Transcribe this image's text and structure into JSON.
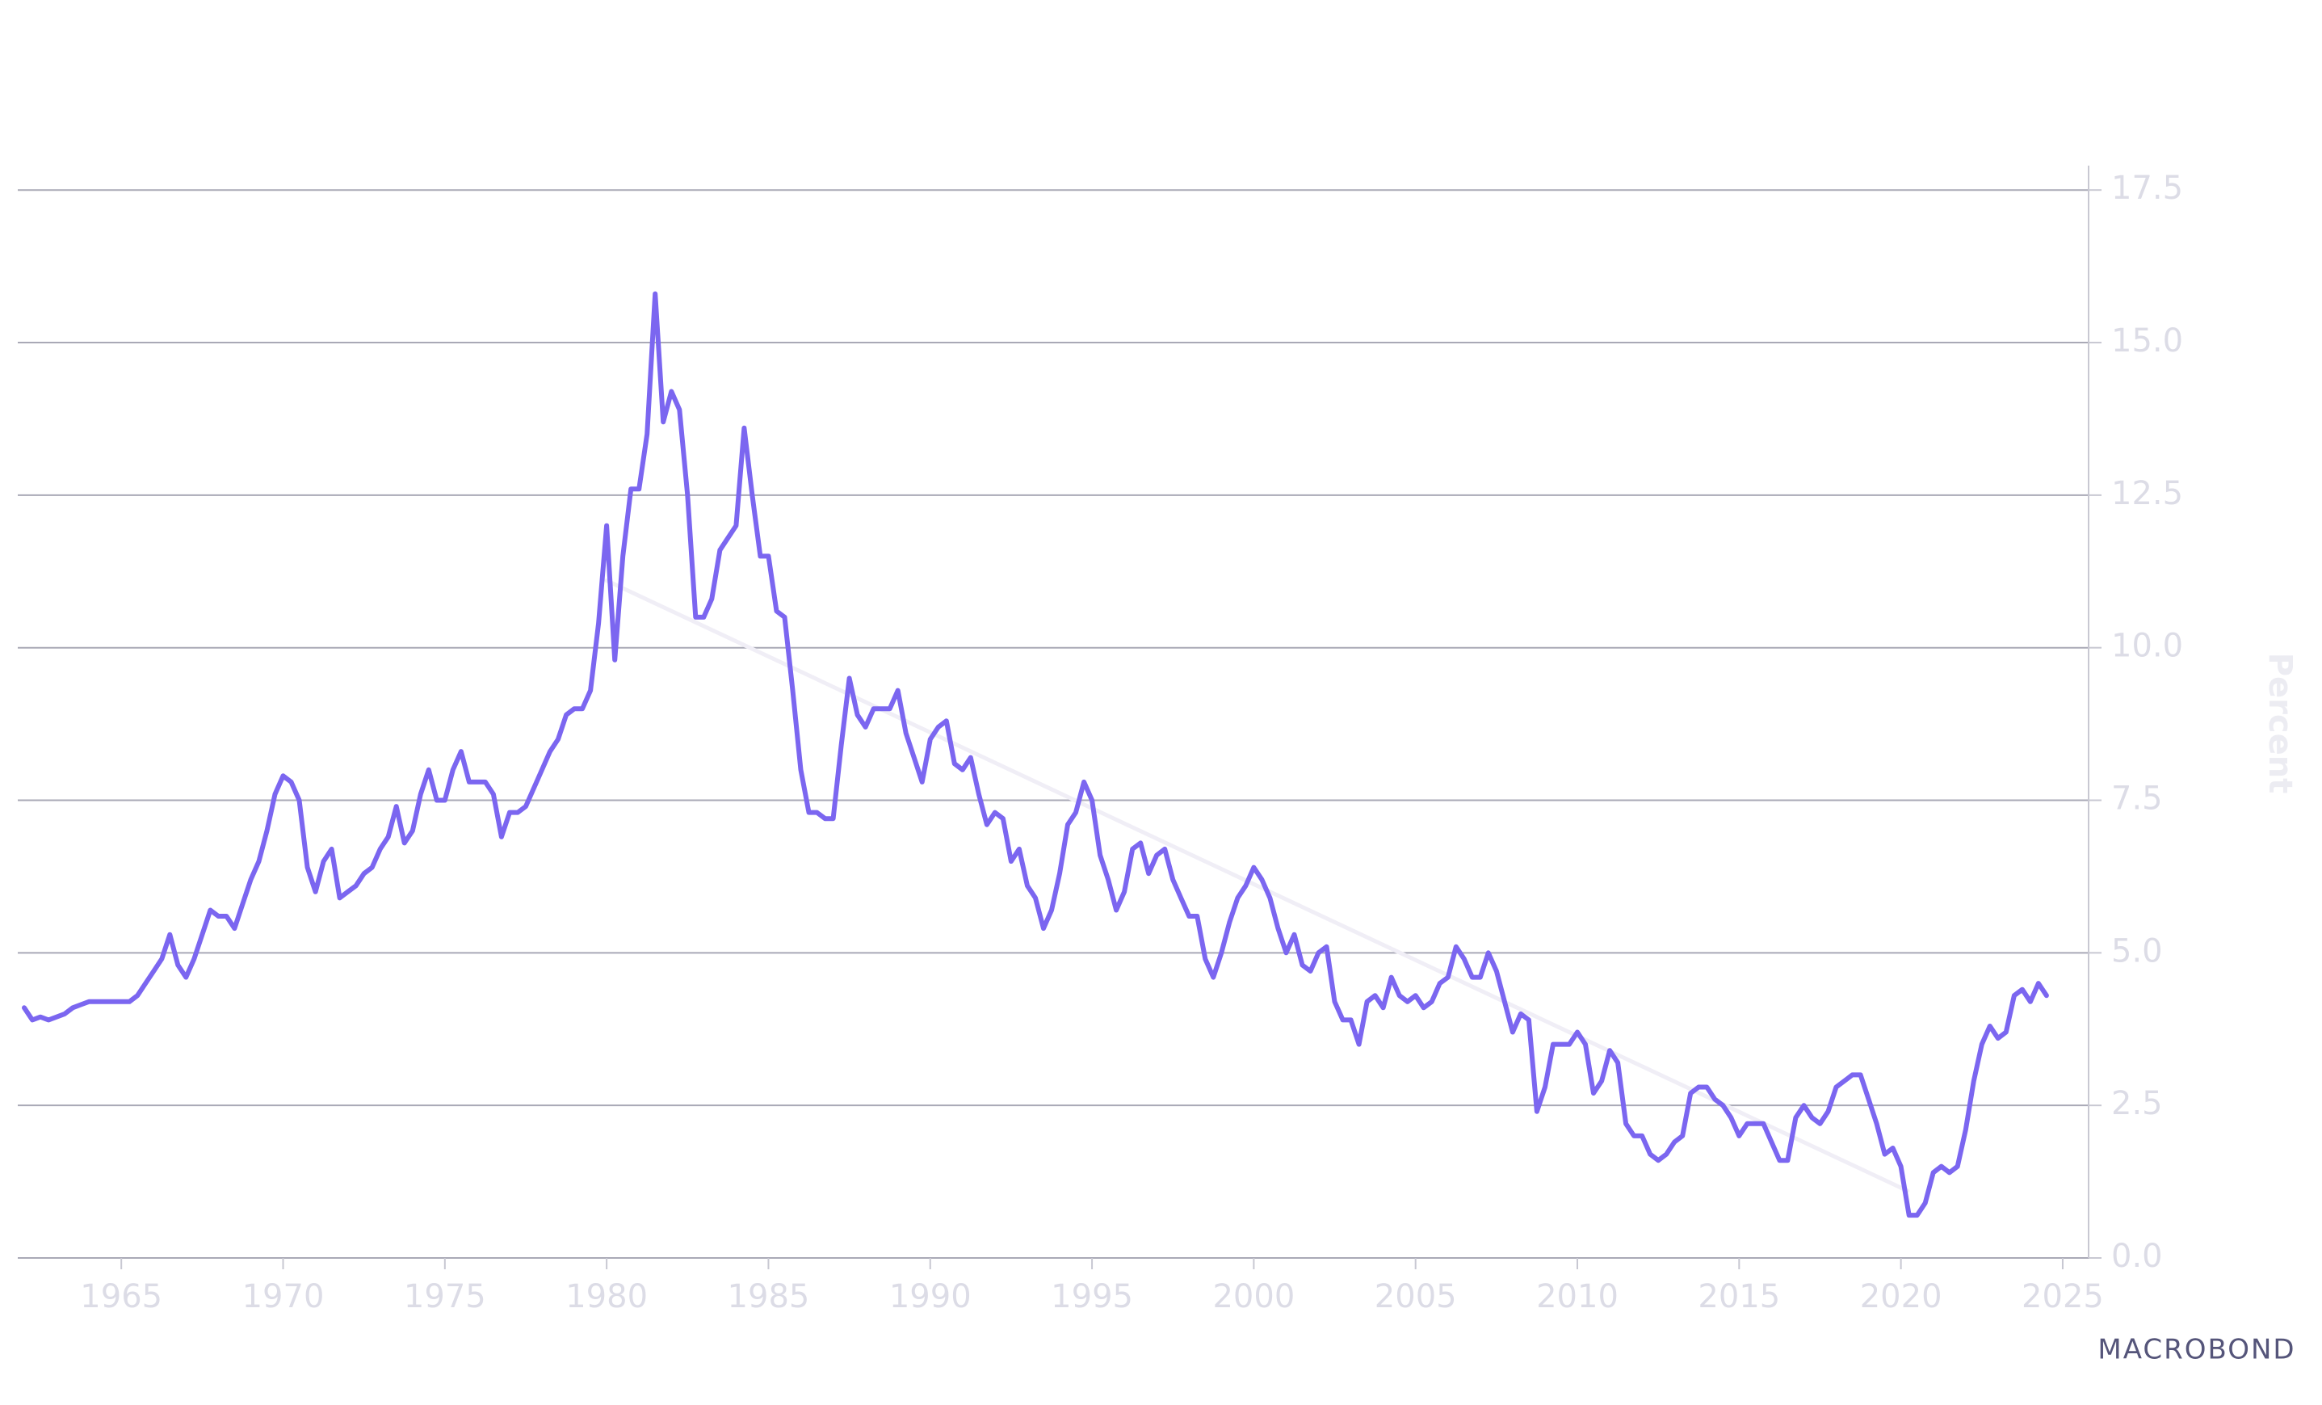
{
  "chart_data": {
    "type": "line",
    "y_label": "Percent",
    "brand": "MACROBOND",
    "xlim": [
      1961.8,
      2025.8
    ],
    "xticks": [
      1965,
      1970,
      1975,
      1980,
      1985,
      1990,
      1995,
      2000,
      2005,
      2010,
      2015,
      2020,
      2025
    ],
    "ylim": [
      0,
      17.9
    ],
    "yticks": [
      {
        "value": 0,
        "label": "0.0"
      },
      2.5,
      {
        "value": 5,
        "label": "5.0"
      },
      7.5,
      {
        "value": 10,
        "label": "10.0"
      },
      12.5,
      {
        "value": 15,
        "label": "15.0"
      },
      17.5
    ],
    "grid": true,
    "series": [
      {
        "color": "#7b66f0",
        "x": [
          1962,
          1962.25,
          1962.5,
          1962.75,
          1963,
          1963.25,
          1963.5,
          1963.75,
          1964,
          1964.25,
          1964.5,
          1964.75,
          1965,
          1965.25,
          1965.5,
          1965.75,
          1966,
          1966.25,
          1966.5,
          1966.75,
          1967,
          1967.25,
          1967.5,
          1967.75,
          1968,
          1968.25,
          1968.5,
          1968.75,
          1969,
          1969.25,
          1969.5,
          1969.75,
          1970,
          1970.25,
          1970.5,
          1970.75,
          1971,
          1971.25,
          1971.5,
          1971.75,
          1972,
          1972.25,
          1972.5,
          1972.75,
          1973,
          1973.25,
          1973.5,
          1973.75,
          1974,
          1974.25,
          1974.5,
          1974.75,
          1975,
          1975.25,
          1975.5,
          1975.75,
          1976,
          1976.25,
          1976.5,
          1976.75,
          1977,
          1977.25,
          1977.5,
          1977.75,
          1978,
          1978.25,
          1978.5,
          1978.75,
          1979,
          1979.25,
          1979.5,
          1979.75,
          1980,
          1980.25,
          1980.5,
          1980.75,
          1981,
          1981.25,
          1981.5,
          1981.75,
          1982,
          1982.25,
          1982.5,
          1982.75,
          1983,
          1983.25,
          1983.5,
          1983.75,
          1984,
          1984.25,
          1984.5,
          1984.75,
          1985,
          1985.25,
          1985.5,
          1985.75,
          1986,
          1986.25,
          1986.5,
          1986.75,
          1987,
          1987.25,
          1987.5,
          1987.75,
          1988,
          1988.25,
          1988.5,
          1988.75,
          1989,
          1989.25,
          1989.5,
          1989.75,
          1990,
          1990.25,
          1990.5,
          1990.75,
          1991,
          1991.25,
          1991.5,
          1991.75,
          1992,
          1992.25,
          1992.5,
          1992.75,
          1993,
          1993.25,
          1993.5,
          1993.75,
          1994,
          1994.25,
          1994.5,
          1994.75,
          1995,
          1995.25,
          1995.5,
          1995.75,
          1996,
          1996.25,
          1996.5,
          1996.75,
          1997,
          1997.25,
          1997.5,
          1997.75,
          1998,
          1998.25,
          1998.5,
          1998.75,
          1999,
          1999.25,
          1999.5,
          1999.75,
          2000,
          2000.25,
          2000.5,
          2000.75,
          2001,
          2001.25,
          2001.5,
          2001.75,
          2002,
          2002.25,
          2002.5,
          2002.75,
          2003,
          2003.25,
          2003.5,
          2003.75,
          2004,
          2004.25,
          2004.5,
          2004.75,
          2005,
          2005.25,
          2005.5,
          2005.75,
          2006,
          2006.25,
          2006.5,
          2006.75,
          2007,
          2007.25,
          2007.5,
          2007.75,
          2008,
          2008.25,
          2008.5,
          2008.75,
          2009,
          2009.25,
          2009.5,
          2009.75,
          2010,
          2010.25,
          2010.5,
          2010.75,
          2011,
          2011.25,
          2011.5,
          2011.75,
          2012,
          2012.25,
          2012.5,
          2012.75,
          2013,
          2013.25,
          2013.5,
          2013.75,
          2014,
          2014.25,
          2014.5,
          2014.75,
          2015,
          2015.25,
          2015.5,
          2015.75,
          2016,
          2016.25,
          2016.5,
          2016.75,
          2017,
          2017.25,
          2017.5,
          2017.75,
          2018,
          2018.25,
          2018.5,
          2018.75,
          2019,
          2019.25,
          2019.5,
          2019.75,
          2020,
          2020.25,
          2020.5,
          2020.75,
          2021,
          2021.25,
          2021.5,
          2021.75,
          2022,
          2022.25,
          2022.5,
          2022.75,
          2023,
          2023.25,
          2023.5,
          2023.75,
          2024,
          2024.25,
          2024.5
        ],
        "values": [
          4.1,
          3.9,
          3.95,
          3.9,
          3.95,
          4.0,
          4.1,
          4.15,
          4.2,
          4.2,
          4.2,
          4.2,
          4.2,
          4.2,
          4.3,
          4.5,
          4.7,
          4.9,
          5.3,
          4.8,
          4.6,
          4.9,
          5.3,
          5.7,
          5.6,
          5.6,
          5.4,
          5.8,
          6.2,
          6.5,
          7.0,
          7.6,
          7.9,
          7.8,
          7.5,
          6.4,
          6.0,
          6.5,
          6.7,
          5.9,
          6.0,
          6.1,
          6.3,
          6.4,
          6.7,
          6.9,
          7.4,
          6.8,
          7.0,
          7.6,
          8.0,
          7.5,
          7.5,
          8.0,
          8.3,
          7.8,
          7.8,
          7.8,
          7.6,
          6.9,
          7.3,
          7.3,
          7.4,
          7.7,
          8.0,
          8.3,
          8.5,
          8.9,
          9.0,
          9.0,
          9.3,
          10.4,
          12.0,
          9.8,
          11.5,
          12.6,
          12.6,
          13.5,
          15.8,
          13.7,
          14.2,
          13.9,
          12.5,
          10.5,
          10.5,
          10.8,
          11.6,
          11.8,
          12.0,
          13.6,
          12.5,
          11.5,
          11.5,
          10.6,
          10.5,
          9.3,
          8.0,
          7.3,
          7.3,
          7.2,
          7.2,
          8.4,
          9.5,
          8.9,
          8.7,
          9.0,
          9.0,
          9.0,
          9.3,
          8.6,
          8.2,
          7.8,
          8.5,
          8.7,
          8.8,
          8.1,
          8.0,
          8.2,
          7.6,
          7.1,
          7.3,
          7.2,
          6.5,
          6.7,
          6.1,
          5.9,
          5.4,
          5.7,
          6.3,
          7.1,
          7.3,
          7.8,
          7.5,
          6.6,
          6.2,
          5.7,
          6.0,
          6.7,
          6.8,
          6.3,
          6.6,
          6.7,
          6.2,
          5.9,
          5.6,
          5.6,
          4.9,
          4.6,
          5.0,
          5.5,
          5.9,
          6.1,
          6.4,
          6.2,
          5.9,
          5.4,
          5.0,
          5.3,
          4.8,
          4.7,
          5.0,
          5.1,
          4.2,
          3.9,
          3.9,
          3.5,
          4.2,
          4.3,
          4.1,
          4.6,
          4.3,
          4.2,
          4.3,
          4.1,
          4.2,
          4.5,
          4.6,
          5.1,
          4.9,
          4.6,
          4.6,
          5.0,
          4.7,
          4.2,
          3.7,
          4.0,
          3.9,
          2.4,
          2.8,
          3.5,
          3.5,
          3.5,
          3.7,
          3.5,
          2.7,
          2.9,
          3.4,
          3.2,
          2.2,
          2.0,
          2.0,
          1.7,
          1.6,
          1.7,
          1.9,
          2.0,
          2.7,
          2.8,
          2.8,
          2.6,
          2.5,
          2.3,
          2.0,
          2.2,
          2.2,
          2.2,
          1.9,
          1.6,
          1.6,
          2.3,
          2.5,
          2.3,
          2.2,
          2.4,
          2.8,
          2.9,
          3.0,
          3.0,
          2.6,
          2.2,
          1.7,
          1.8,
          1.5,
          0.7,
          0.7,
          0.9,
          1.4,
          1.5,
          1.4,
          1.5,
          2.1,
          2.9,
          3.5,
          3.8,
          3.6,
          3.7,
          4.3,
          4.4,
          4.2,
          4.5,
          4.3
        ]
      },
      {
        "color": "#f0eef6",
        "x": [
          1980.0,
          2020.2
        ],
        "values": [
          11.1,
          1.1
        ]
      }
    ]
  }
}
